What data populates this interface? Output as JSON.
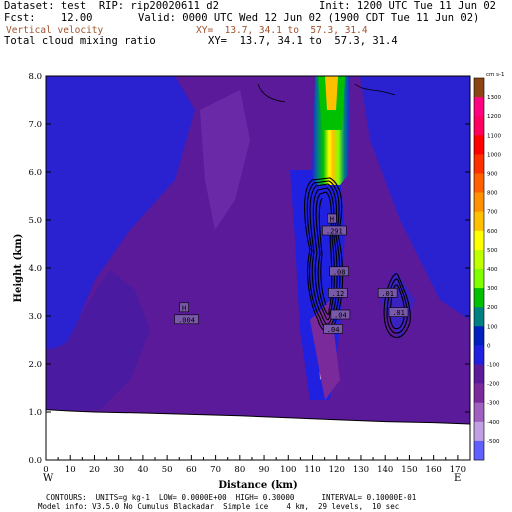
{
  "header": {
    "line1_left": "Dataset: test  RIP: rip20020611 d2",
    "line1_right": "Init: 1200 UTC Tue 11 Jun 02",
    "line2_left": "Fcst:    12.00",
    "line2_right": "Valid: 0000 UTC Wed 12 Jun 02 (1900 CDT Tue 11 Jun 02)",
    "field1_name": "Vertical velocity",
    "field1_xy": "XY=  13.7, 34.1 to  57.3, 31.4",
    "field2_name": "Total cloud mixing ratio",
    "field2_xy": "XY=  13.7, 34.1 to  57.3, 31.4"
  },
  "footer": {
    "line1": "CONTOURS:  UNITS=g kg-1  LOW= 0.0000E+00  HIGH= 0.30000      INTERVAL= 0.10000E-01",
    "line2": "Model info: V3.5.0 No Cumulus Blackadar  Simple ice    4 km,  29 levels,  10 sec"
  },
  "direction_labels": {
    "west": "W",
    "east": "E"
  },
  "chart_data": {
    "type": "heatmap",
    "xlabel": "Distance (km)",
    "ylabel": "Height (km)",
    "xlim": [
      0,
      175
    ],
    "ylim": [
      0,
      8
    ],
    "x_ticks": [
      "0",
      "10",
      "20",
      "30",
      "40",
      "50",
      "60",
      "70",
      "80",
      "90",
      "100",
      "110",
      "120",
      "130",
      "140",
      "150",
      "160",
      "170"
    ],
    "y_ticks": [
      "0.0",
      "1.0",
      "2.0",
      "3.0",
      "4.0",
      "5.0",
      "6.0",
      "7.0",
      "8.0"
    ],
    "colorbar": {
      "units": "cm s-1",
      "labels": [
        "1300",
        "1200",
        "1100",
        "1000",
        "900",
        "800",
        "700",
        "600",
        "500",
        "400",
        "300",
        "200",
        "100",
        "0",
        "-100",
        "-200",
        "-300",
        "-400",
        "-500"
      ],
      "colors": [
        "#8b4513",
        "#ff0080",
        "#ff0060",
        "#ff0000",
        "#ff3000",
        "#ff6000",
        "#ff9000",
        "#ffc000",
        "#ffff00",
        "#c0ff00",
        "#80ff00",
        "#00c000",
        "#008080",
        "#0020c0",
        "#2020e0",
        "#5a1a9a",
        "#7a2a9a",
        "#a060c0",
        "#c0a0e0",
        "#6060ff"
      ]
    },
    "terrain_km": [
      [
        0,
        1.05
      ],
      [
        10,
        1.02
      ],
      [
        20,
        1.0
      ],
      [
        40,
        0.98
      ],
      [
        60,
        0.95
      ],
      [
        80,
        0.92
      ],
      [
        100,
        0.88
      ],
      [
        120,
        0.84
      ],
      [
        140,
        0.8
      ],
      [
        160,
        0.78
      ],
      [
        175,
        0.75
      ]
    ],
    "cloud_labels": [
      {
        "text": "H",
        "x": 57,
        "y": 3.15
      },
      {
        "text": ".004",
        "x": 58,
        "y": 2.9
      },
      {
        "text": "H",
        "x": 118,
        "y": 5.0
      },
      {
        "text": ".291",
        "x": 119,
        "y": 4.75
      },
      {
        "text": ".08",
        "x": 121,
        "y": 3.9
      },
      {
        "text": ".12",
        "x": 120.5,
        "y": 3.45
      },
      {
        "text": ".04",
        "x": 121.5,
        "y": 3.0
      },
      {
        "text": ".04",
        "x": 118.5,
        "y": 2.7
      },
      {
        "text": ".01",
        "x": 141,
        "y": 3.45
      },
      {
        "text": ".01",
        "x": 145.5,
        "y": 3.05
      }
    ]
  }
}
